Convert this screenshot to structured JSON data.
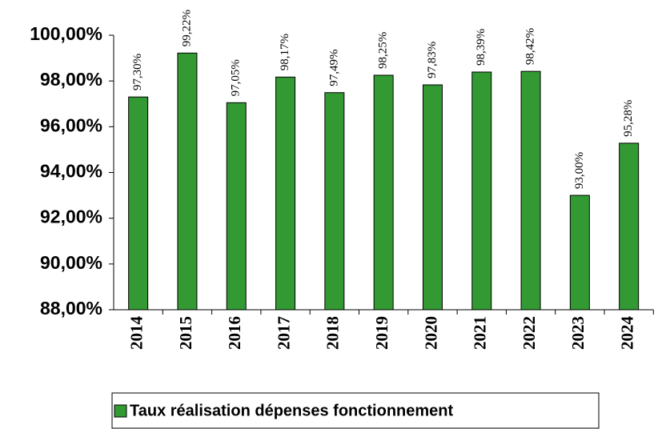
{
  "chart_data": {
    "type": "bar",
    "categories": [
      "2014",
      "2015",
      "2016",
      "2017",
      "2018",
      "2019",
      "2020",
      "2021",
      "2022",
      "2023",
      "2024"
    ],
    "series": [
      {
        "name": "Taux réalisation dépenses fonctionnement",
        "color": "#339933",
        "values": [
          97.3,
          99.22,
          97.05,
          98.17,
          97.49,
          98.25,
          97.83,
          98.39,
          98.42,
          93.0,
          95.28
        ],
        "value_labels": [
          "97,30%",
          "99,22%",
          "97,05%",
          "98,17%",
          "97,49%",
          "98,25%",
          "97,83%",
          "98,39%",
          "98,42%",
          "93,00%",
          "95,28%"
        ]
      }
    ],
    "ylim": [
      88,
      100
    ],
    "yticks": [
      {
        "value": 88,
        "label": "88,00%"
      },
      {
        "value": 90,
        "label": "90,00%"
      },
      {
        "value": 92,
        "label": "92,00%"
      },
      {
        "value": 94,
        "label": "94,00%"
      },
      {
        "value": 96,
        "label": "96,00%"
      },
      {
        "value": 98,
        "label": "98,00%"
      },
      {
        "value": 100,
        "label": "100,00%"
      }
    ],
    "legend": "bottom"
  }
}
